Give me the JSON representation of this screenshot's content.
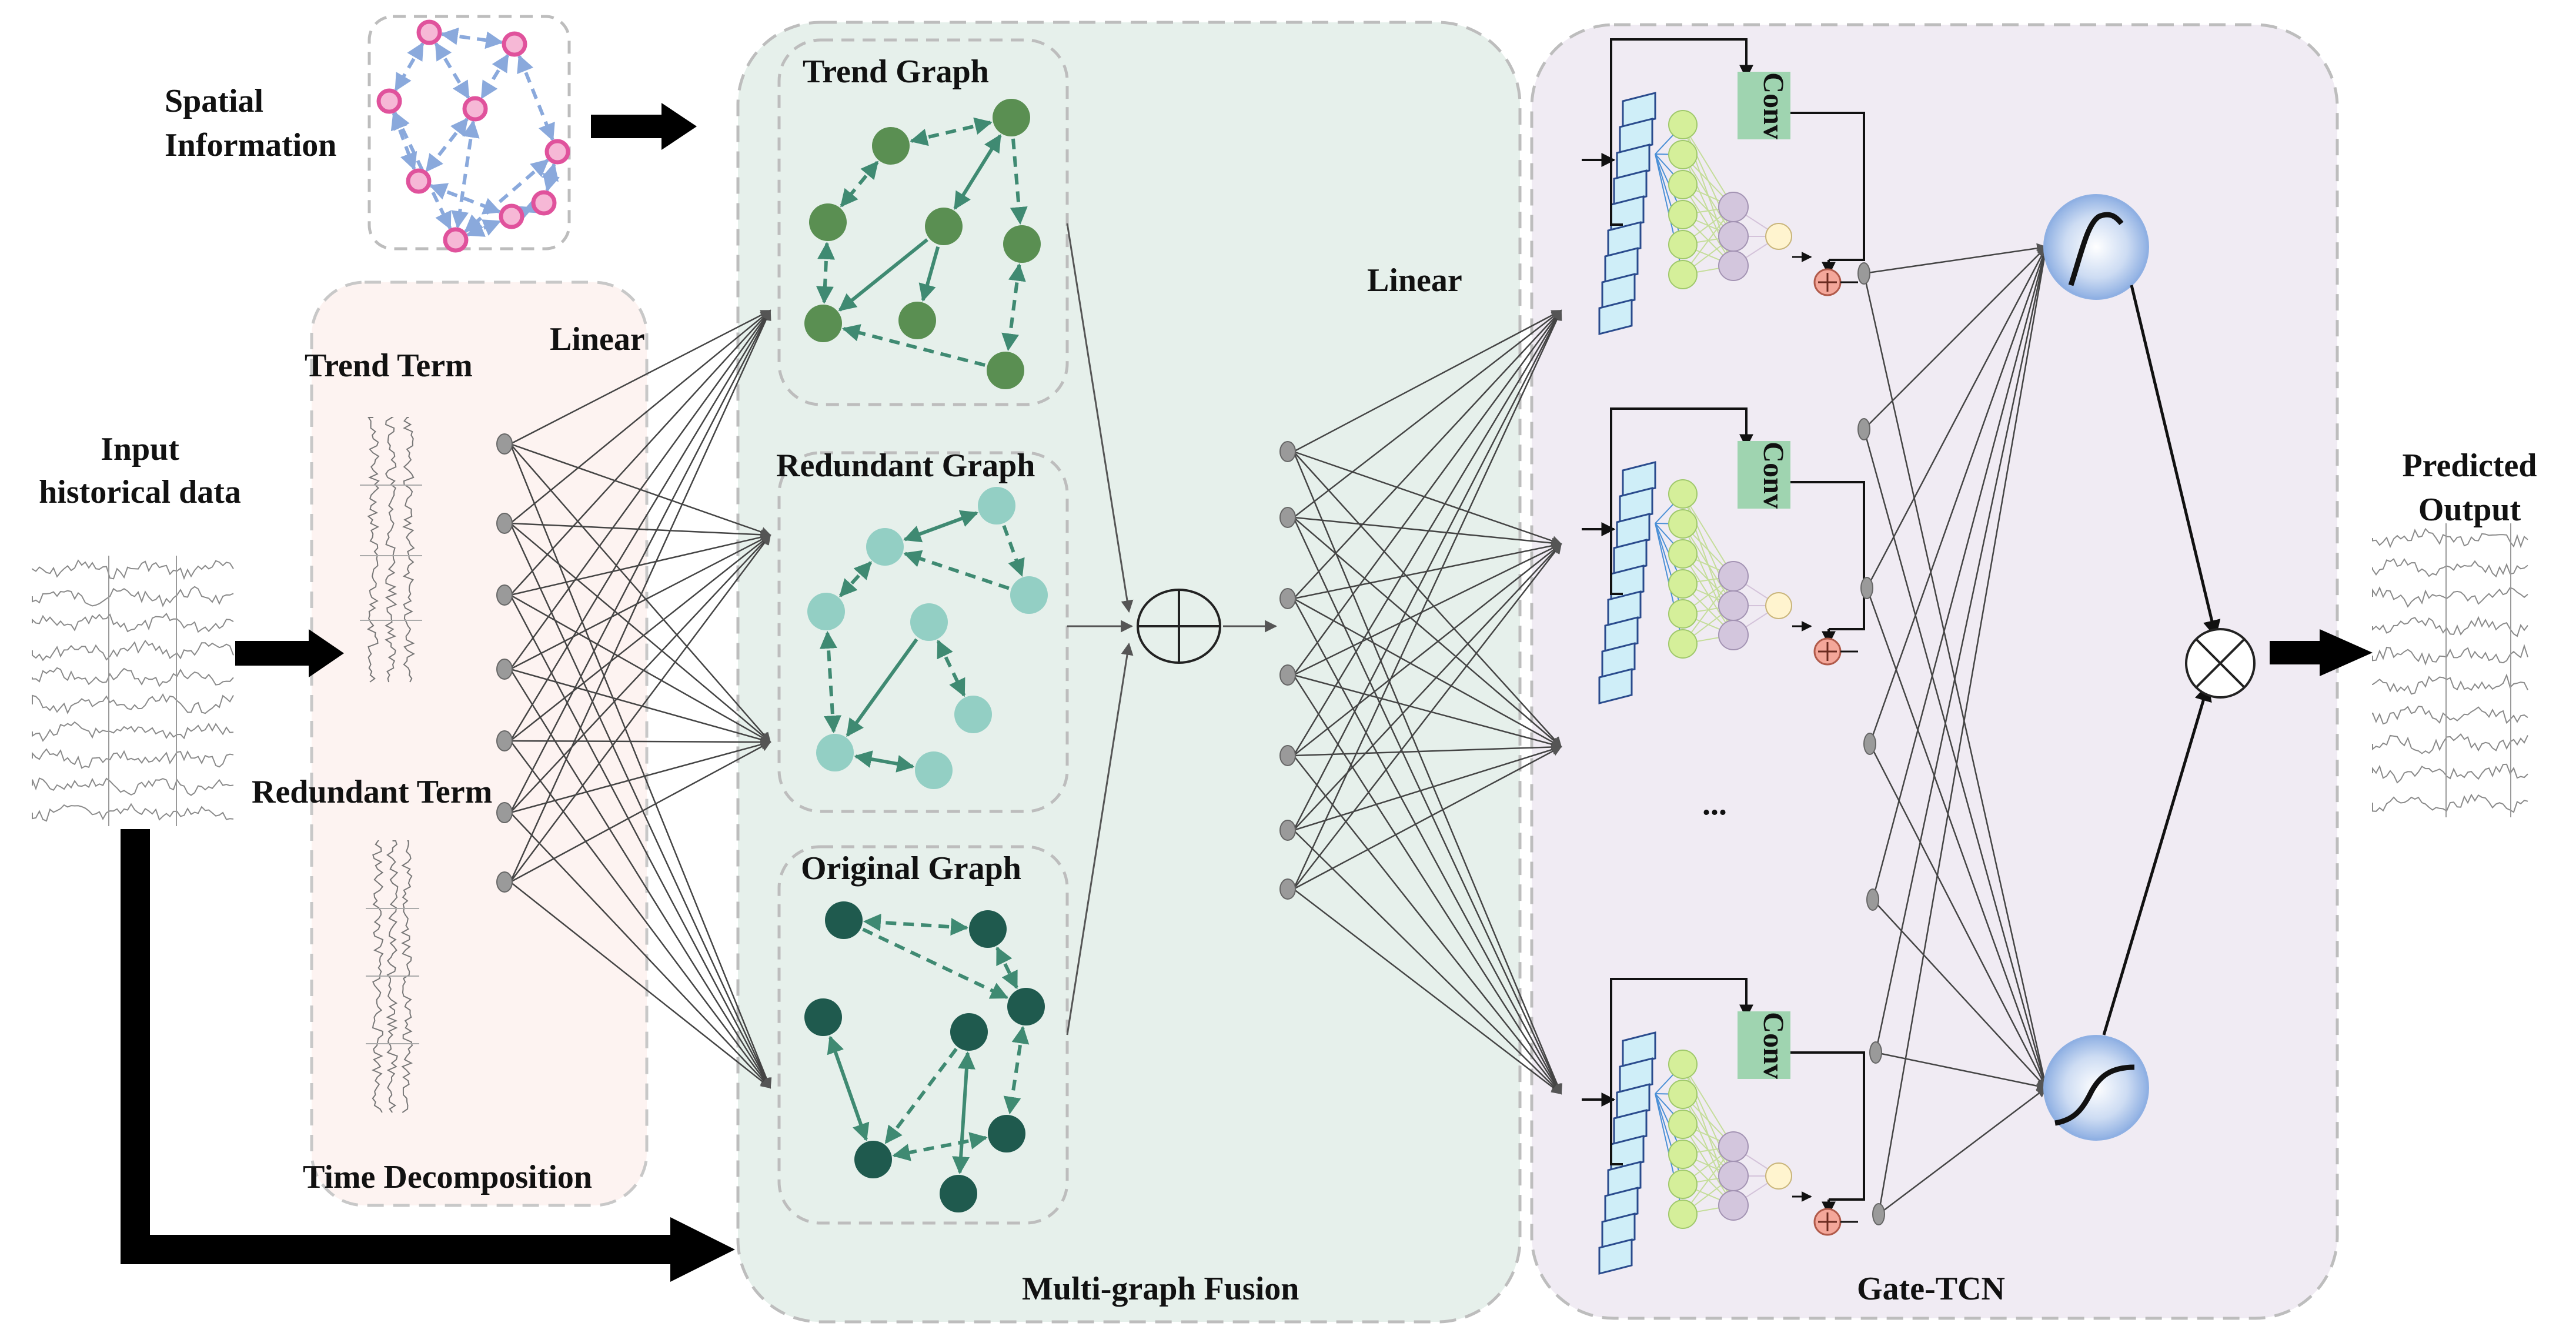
{
  "labels": {
    "spatial_1": "Spatial",
    "spatial_2": "Information",
    "input_1": "Input",
    "input_2": "historical data",
    "trend_term": "Trend Term",
    "linear_left": "Linear",
    "redundant_term": "Redundant Term",
    "time_decomposition": "Time Decomposition",
    "trend_graph": "Trend Graph",
    "redundant_graph": "Redundant Graph",
    "original_graph": "Original Graph",
    "multi_graph_fusion": "Multi-graph Fusion",
    "linear_right": "Linear",
    "conv": "Conv",
    "ellipsis": "...",
    "gate_tcn": "Gate-TCN",
    "predicted_1": "Predicted",
    "predicted_2": "Output"
  },
  "colors": {
    "spatial_node": "#e0529c",
    "spatial_edge": "#8aa9dc",
    "trend_node": "#5a8f52",
    "redundant_node": "#93cfc4",
    "original_node": "#1f5a4e",
    "graph_edge": "#3f8a72",
    "decomp_bg": "#fdf3f1",
    "fusion_bg": "#e6f0eb",
    "gate_bg": "#f0ebf3",
    "conv_box": "#9fd4b0",
    "tcn_cell": "#cfeef8",
    "tcn_node_green": "#d5ef9a",
    "tcn_node_purple": "#d3c6dd",
    "tcn_node_yellow": "#fff4cf",
    "tcn_plus": "#f4a79a",
    "gate_circle": "#a9c3ea"
  },
  "icons": {
    "fusion": "circle-plus-icon",
    "product": "circle-times-icon",
    "activation": "sigmoid-icon"
  }
}
